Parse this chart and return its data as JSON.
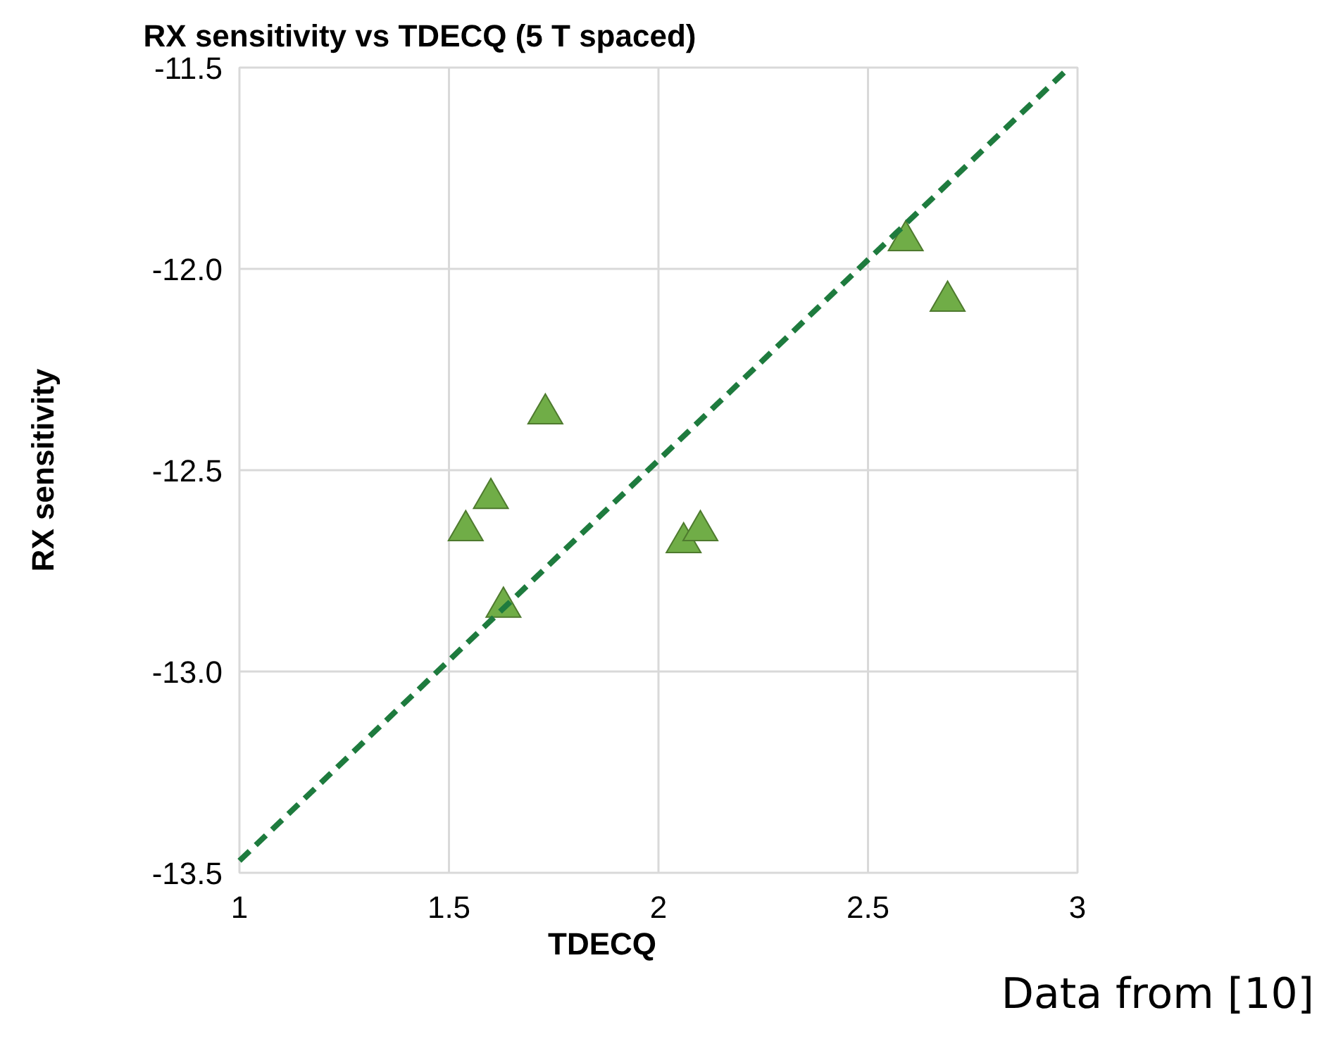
{
  "chart_data": {
    "type": "scatter",
    "title": "RX sensitivity vs TDECQ (5 T spaced)",
    "xlabel": "TDECQ",
    "ylabel": "RX sensitivity",
    "xlim": [
      1,
      3
    ],
    "xticks": [
      1,
      1.5,
      2,
      2.5,
      3
    ],
    "ylim": [
      -13.5,
      -11.5
    ],
    "yticks": [
      {
        "value": -13.5,
        "label": "-13.5"
      },
      {
        "value": -13,
        "label": "-13.0"
      },
      {
        "value": -12.5,
        "label": "-12.5"
      },
      {
        "value": -12,
        "label": "-12.0"
      },
      {
        "value": -11.5,
        "label": "-11.5"
      }
    ],
    "grid": true,
    "marker": "triangle",
    "series": [
      {
        "color": "#70ad47",
        "x": [
          1.54,
          1.6,
          1.63,
          1.73,
          2.06,
          2.1,
          2.59,
          2.69
        ],
        "values": [
          -12.65,
          -12.57,
          -12.84,
          -12.36,
          -12.68,
          -12.65,
          -11.93,
          -12.08
        ]
      },
      {
        "type": "line",
        "color": "#1e7b3e",
        "line_style": "dashed",
        "marker": "none",
        "x": [
          1,
          2.98
        ],
        "values": [
          -13.47,
          -11.5
        ]
      }
    ],
    "annotations": [
      "Data from [10]"
    ]
  }
}
